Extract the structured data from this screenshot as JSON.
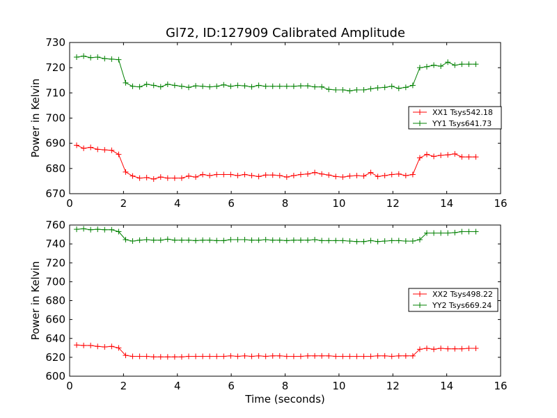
{
  "figure": {
    "title": "Gl72, ID:127909 Calibrated Amplitude"
  },
  "chart_data": [
    {
      "type": "line",
      "title": "Gl72, ID:127909 Calibrated Amplitude",
      "xlabel": "",
      "ylabel": "Power in Kelvin",
      "xlim": [
        0,
        16
      ],
      "ylim": [
        670,
        730
      ],
      "xticks": [
        0,
        2,
        4,
        6,
        8,
        10,
        12,
        14,
        16
      ],
      "yticks": [
        670,
        680,
        690,
        700,
        710,
        720,
        730
      ],
      "grid": false,
      "legend_position": "center-right",
      "x": [
        0.26,
        0.52,
        0.78,
        1.04,
        1.3,
        1.56,
        1.82,
        2.08,
        2.34,
        2.6,
        2.86,
        3.12,
        3.38,
        3.64,
        3.9,
        4.16,
        4.42,
        4.68,
        4.94,
        5.2,
        5.46,
        5.72,
        5.98,
        6.24,
        6.5,
        6.76,
        7.02,
        7.28,
        7.54,
        7.8,
        8.06,
        8.32,
        8.58,
        8.84,
        9.1,
        9.36,
        9.62,
        9.88,
        10.14,
        10.4,
        10.66,
        10.92,
        11.18,
        11.44,
        11.7,
        11.96,
        12.22,
        12.48,
        12.74,
        13.0,
        13.26,
        13.52,
        13.78,
        14.04,
        14.3,
        14.56,
        14.82,
        15.08
      ],
      "series": [
        {
          "name": "XX1 Tsys542.18",
          "color": "#ff0000",
          "values": [
            689.2,
            688.0,
            688.4,
            687.6,
            687.4,
            687.2,
            685.6,
            678.6,
            677.0,
            676.2,
            676.4,
            675.8,
            676.6,
            676.2,
            676.2,
            676.2,
            677.0,
            676.6,
            677.6,
            677.2,
            677.6,
            677.6,
            677.6,
            677.2,
            677.6,
            677.2,
            676.8,
            677.4,
            677.4,
            677.2,
            676.6,
            677.2,
            677.6,
            677.8,
            678.4,
            677.8,
            677.4,
            676.8,
            676.6,
            677.0,
            677.2,
            677.0,
            678.4,
            676.8,
            677.2,
            677.6,
            677.8,
            677.2,
            677.6,
            684.2,
            685.6,
            684.8,
            685.2,
            685.4,
            685.8,
            684.6,
            684.6,
            684.6
          ]
        },
        {
          "name": "YY1 Tsys641.73",
          "color": "#008000",
          "values": [
            724.2,
            724.6,
            724.0,
            724.2,
            723.6,
            723.4,
            723.2,
            714.0,
            712.6,
            712.4,
            713.4,
            713.0,
            712.4,
            713.4,
            713.0,
            712.6,
            712.2,
            712.8,
            712.6,
            712.4,
            712.6,
            713.2,
            712.6,
            713.0,
            712.8,
            712.4,
            713.0,
            712.6,
            712.6,
            712.6,
            712.6,
            712.6,
            712.8,
            712.8,
            712.4,
            712.4,
            711.4,
            711.2,
            711.2,
            710.8,
            711.2,
            711.2,
            711.6,
            712.0,
            712.2,
            712.6,
            711.8,
            712.2,
            713.0,
            720.0,
            720.4,
            721.0,
            720.6,
            722.2,
            721.0,
            721.4,
            721.4,
            721.4
          ]
        }
      ]
    },
    {
      "type": "line",
      "title": "",
      "xlabel": "Time (seconds)",
      "ylabel": "Power in Kelvin",
      "xlim": [
        0,
        16
      ],
      "ylim": [
        600,
        760
      ],
      "xticks": [
        0,
        2,
        4,
        6,
        8,
        10,
        12,
        14,
        16
      ],
      "yticks": [
        600,
        620,
        640,
        660,
        680,
        700,
        720,
        740,
        760
      ],
      "grid": false,
      "legend_position": "center-right",
      "x": [
        0.26,
        0.52,
        0.78,
        1.04,
        1.3,
        1.56,
        1.82,
        2.08,
        2.34,
        2.6,
        2.86,
        3.12,
        3.38,
        3.64,
        3.9,
        4.16,
        4.42,
        4.68,
        4.94,
        5.2,
        5.46,
        5.72,
        5.98,
        6.24,
        6.5,
        6.76,
        7.02,
        7.28,
        7.54,
        7.8,
        8.06,
        8.32,
        8.58,
        8.84,
        9.1,
        9.36,
        9.62,
        9.88,
        10.14,
        10.4,
        10.66,
        10.92,
        11.18,
        11.44,
        11.7,
        11.96,
        12.22,
        12.48,
        12.74,
        13.0,
        13.26,
        13.52,
        13.78,
        14.04,
        14.3,
        14.56,
        14.82,
        15.08
      ],
      "series": [
        {
          "name": "XX2 Tsys498.22",
          "color": "#ff0000",
          "values": [
            633.0,
            632.5,
            632.5,
            631.5,
            631.0,
            631.5,
            630.0,
            622.0,
            621.0,
            621.0,
            621.0,
            620.5,
            620.5,
            620.5,
            620.5,
            620.5,
            621.0,
            621.0,
            621.0,
            621.0,
            621.0,
            621.0,
            621.5,
            621.0,
            621.5,
            621.0,
            621.5,
            621.0,
            621.5,
            621.5,
            621.0,
            621.0,
            621.0,
            621.5,
            621.5,
            621.5,
            621.5,
            621.0,
            621.0,
            621.0,
            621.0,
            621.0,
            621.0,
            621.5,
            621.5,
            621.0,
            621.5,
            621.5,
            621.5,
            628.5,
            629.5,
            628.5,
            629.5,
            629.0,
            629.0,
            629.0,
            629.5,
            629.5
          ]
        },
        {
          "name": "YY2 Tsys669.24",
          "color": "#008000",
          "values": [
            755.5,
            756.0,
            755.0,
            755.5,
            755.0,
            755.0,
            753.0,
            744.5,
            743.0,
            744.0,
            744.5,
            744.0,
            744.0,
            745.0,
            744.0,
            744.0,
            744.0,
            743.5,
            744.0,
            744.0,
            743.5,
            743.5,
            744.5,
            744.5,
            744.5,
            744.0,
            744.0,
            744.5,
            744.0,
            744.0,
            743.5,
            744.0,
            744.0,
            744.0,
            744.5,
            743.5,
            743.5,
            743.5,
            743.5,
            743.0,
            742.5,
            742.5,
            743.5,
            742.5,
            743.0,
            743.5,
            743.5,
            743.0,
            743.0,
            744.5,
            751.5,
            751.5,
            751.5,
            751.5,
            752.0,
            753.0,
            753.0,
            753.0
          ]
        }
      ]
    }
  ]
}
